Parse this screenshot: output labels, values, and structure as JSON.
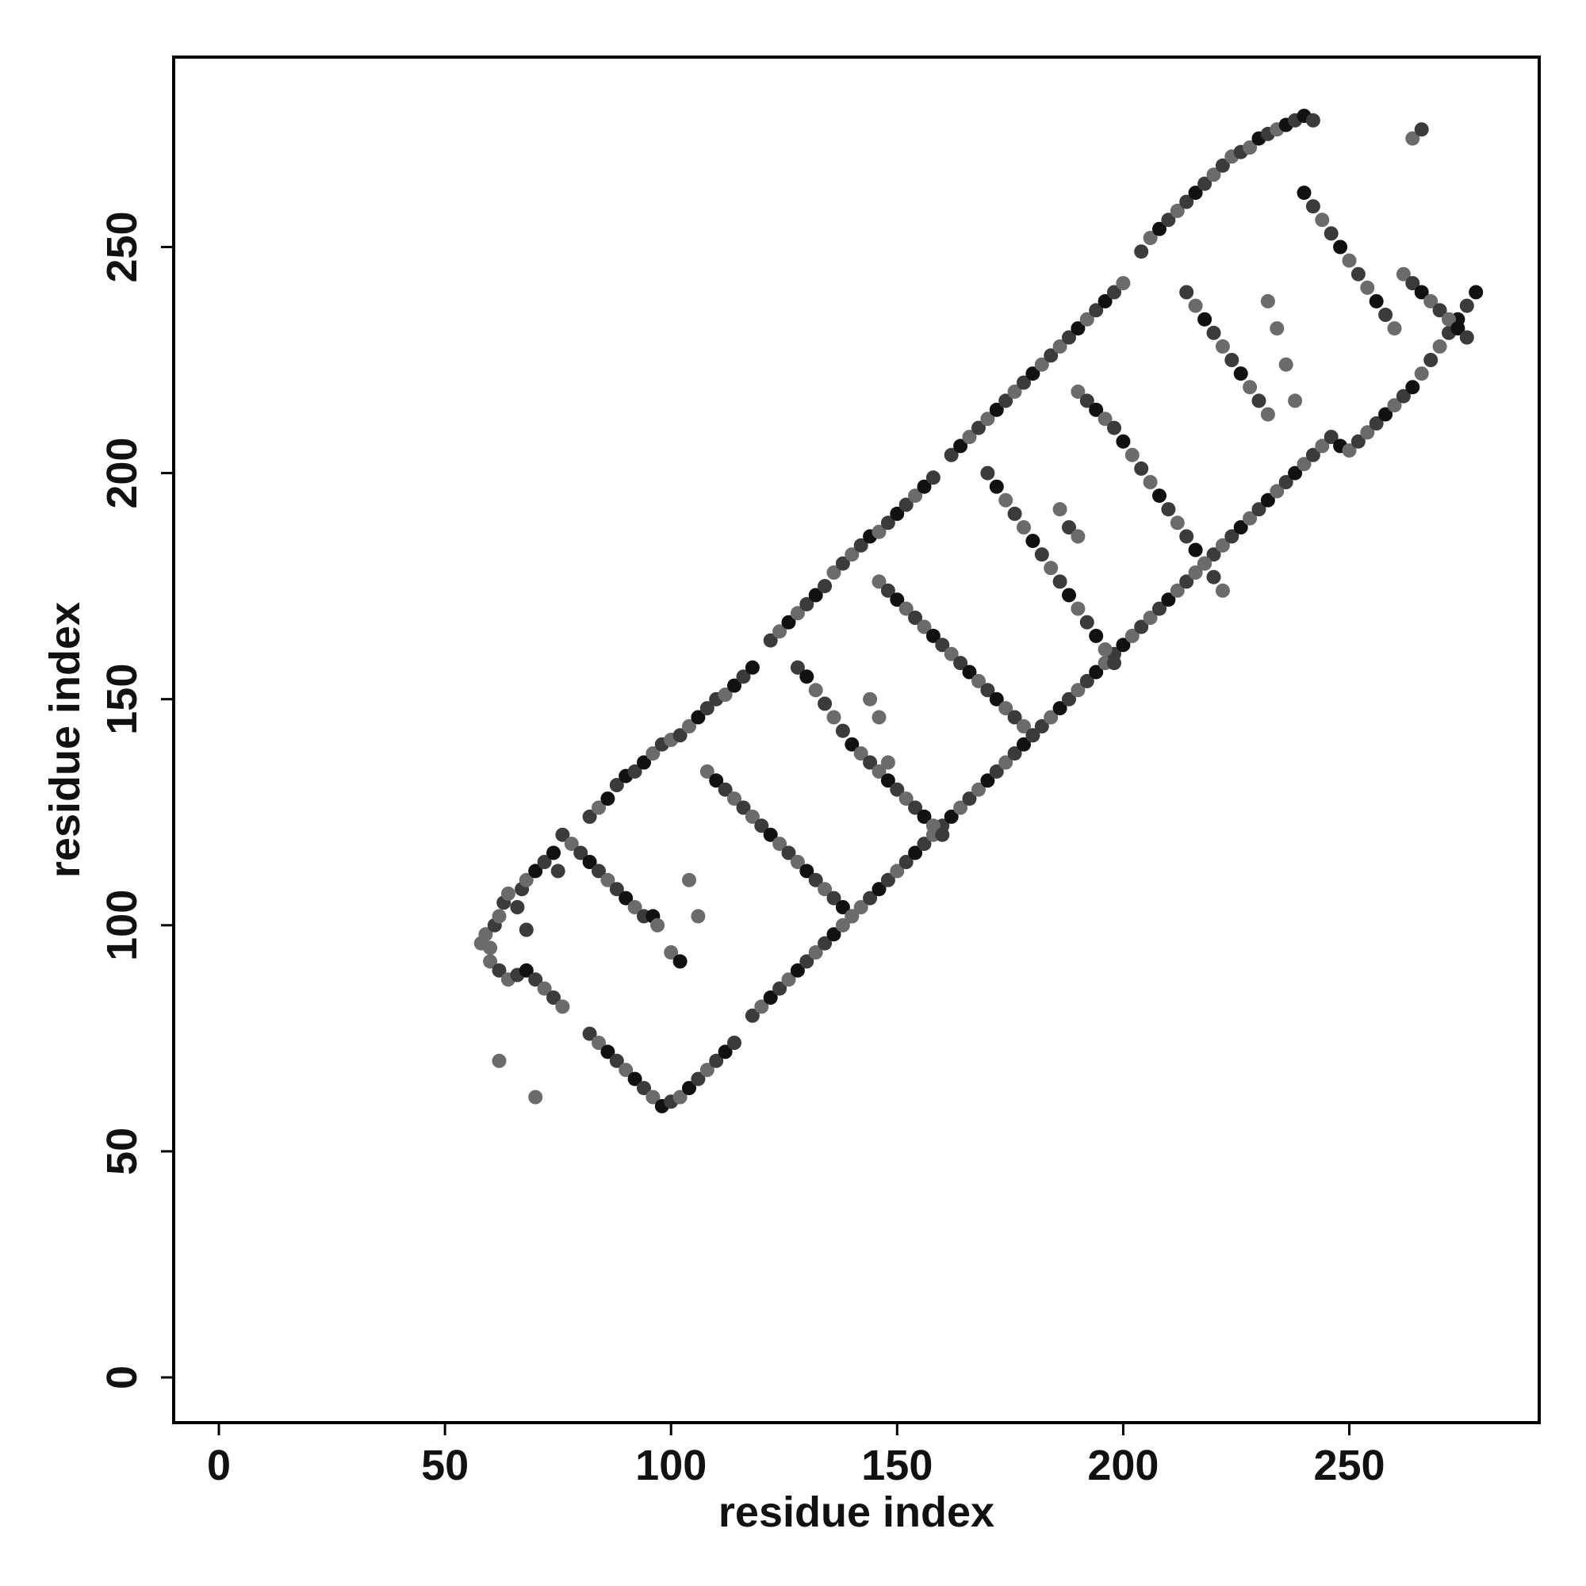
{
  "chart_data": {
    "type": "scatter",
    "title": "",
    "xlabel": "residue index",
    "ylabel": "residue index",
    "xlim": [
      -10,
      292
    ],
    "ylim": [
      -10,
      292
    ],
    "xticks": [
      "0",
      "50",
      "100",
      "150",
      "200",
      "250"
    ],
    "yticks": [
      "0",
      "50",
      "100",
      "150",
      "200",
      "250"
    ],
    "grid": false,
    "legend": "none",
    "colors": [
      "#111111",
      "#3b3b3b",
      "#6b6b6b"
    ],
    "points": [
      [
        58,
        96,
        2
      ],
      [
        59,
        98,
        2
      ],
      [
        60,
        95,
        2
      ],
      [
        61,
        100,
        1
      ],
      [
        62,
        102,
        2
      ],
      [
        63,
        105,
        1
      ],
      [
        64,
        107,
        2
      ],
      [
        66,
        104,
        1
      ],
      [
        67,
        108,
        1
      ],
      [
        68,
        110,
        2
      ],
      [
        70,
        112,
        0
      ],
      [
        72,
        114,
        1
      ],
      [
        74,
        116,
        0
      ],
      [
        75,
        112,
        1
      ],
      [
        68,
        99,
        1
      ],
      [
        82,
        124,
        1
      ],
      [
        84,
        126,
        2
      ],
      [
        86,
        128,
        0
      ],
      [
        88,
        131,
        1
      ],
      [
        90,
        133,
        0
      ],
      [
        92,
        134,
        1
      ],
      [
        94,
        136,
        0
      ],
      [
        96,
        138,
        2
      ],
      [
        98,
        140,
        1
      ],
      [
        100,
        141,
        2
      ],
      [
        102,
        142,
        1
      ],
      [
        104,
        144,
        2
      ],
      [
        106,
        146,
        0
      ],
      [
        108,
        148,
        1
      ],
      [
        110,
        150,
        1
      ],
      [
        112,
        151,
        2
      ],
      [
        114,
        153,
        0
      ],
      [
        116,
        155,
        1
      ],
      [
        118,
        157,
        0
      ],
      [
        122,
        163,
        1
      ],
      [
        124,
        165,
        2
      ],
      [
        126,
        167,
        0
      ],
      [
        128,
        169,
        2
      ],
      [
        130,
        171,
        1
      ],
      [
        132,
        173,
        0
      ],
      [
        134,
        175,
        1
      ],
      [
        136,
        178,
        2
      ],
      [
        138,
        180,
        1
      ],
      [
        140,
        182,
        2
      ],
      [
        142,
        184,
        1
      ],
      [
        144,
        186,
        0
      ],
      [
        146,
        187,
        2
      ],
      [
        148,
        189,
        1
      ],
      [
        150,
        191,
        0
      ],
      [
        152,
        193,
        1
      ],
      [
        154,
        195,
        2
      ],
      [
        156,
        197,
        0
      ],
      [
        158,
        199,
        1
      ],
      [
        162,
        204,
        1
      ],
      [
        164,
        206,
        0
      ],
      [
        166,
        208,
        2
      ],
      [
        168,
        210,
        1
      ],
      [
        170,
        212,
        2
      ],
      [
        172,
        214,
        0
      ],
      [
        174,
        216,
        1
      ],
      [
        176,
        218,
        2
      ],
      [
        178,
        220,
        1
      ],
      [
        180,
        222,
        0
      ],
      [
        182,
        224,
        2
      ],
      [
        184,
        226,
        1
      ],
      [
        186,
        228,
        2
      ],
      [
        188,
        230,
        1
      ],
      [
        190,
        232,
        0
      ],
      [
        192,
        234,
        2
      ],
      [
        194,
        236,
        1
      ],
      [
        196,
        238,
        0
      ],
      [
        198,
        240,
        1
      ],
      [
        200,
        242,
        2
      ],
      [
        204,
        249,
        1
      ],
      [
        206,
        252,
        2
      ],
      [
        208,
        254,
        0
      ],
      [
        210,
        256,
        1
      ],
      [
        212,
        258,
        2
      ],
      [
        214,
        260,
        1
      ],
      [
        216,
        262,
        0
      ],
      [
        218,
        264,
        1
      ],
      [
        220,
        266,
        2
      ],
      [
        222,
        268,
        1
      ],
      [
        224,
        270,
        2
      ],
      [
        226,
        271,
        1
      ],
      [
        228,
        272,
        2
      ],
      [
        230,
        274,
        0
      ],
      [
        232,
        275,
        1
      ],
      [
        234,
        276,
        2
      ],
      [
        236,
        277,
        0
      ],
      [
        238,
        278,
        1
      ],
      [
        240,
        279,
        0
      ],
      [
        242,
        278,
        1
      ],
      [
        60,
        92,
        2
      ],
      [
        62,
        90,
        1
      ],
      [
        64,
        88,
        2
      ],
      [
        66,
        89,
        1
      ],
      [
        68,
        90,
        0
      ],
      [
        70,
        88,
        1
      ],
      [
        72,
        86,
        2
      ],
      [
        74,
        84,
        1
      ],
      [
        76,
        82,
        2
      ],
      [
        82,
        76,
        1
      ],
      [
        84,
        74,
        2
      ],
      [
        86,
        72,
        0
      ],
      [
        88,
        70,
        1
      ],
      [
        90,
        68,
        2
      ],
      [
        92,
        66,
        0
      ],
      [
        94,
        64,
        1
      ],
      [
        96,
        62,
        2
      ],
      [
        98,
        60,
        0
      ],
      [
        100,
        61,
        1
      ],
      [
        102,
        62,
        2
      ],
      [
        104,
        64,
        0
      ],
      [
        106,
        66,
        1
      ],
      [
        108,
        68,
        2
      ],
      [
        110,
        70,
        1
      ],
      [
        112,
        72,
        0
      ],
      [
        114,
        74,
        1
      ],
      [
        118,
        80,
        1
      ],
      [
        120,
        82,
        2
      ],
      [
        122,
        84,
        0
      ],
      [
        124,
        86,
        1
      ],
      [
        126,
        88,
        2
      ],
      [
        128,
        90,
        0
      ],
      [
        130,
        92,
        1
      ],
      [
        132,
        94,
        2
      ],
      [
        134,
        96,
        1
      ],
      [
        136,
        98,
        0
      ],
      [
        138,
        100,
        2
      ],
      [
        140,
        102,
        1
      ],
      [
        142,
        104,
        2
      ],
      [
        144,
        106,
        1
      ],
      [
        146,
        108,
        0
      ],
      [
        148,
        110,
        1
      ],
      [
        150,
        112,
        2
      ],
      [
        152,
        114,
        1
      ],
      [
        154,
        116,
        0
      ],
      [
        156,
        118,
        1
      ],
      [
        158,
        120,
        2
      ],
      [
        160,
        122,
        1
      ],
      [
        162,
        124,
        0
      ],
      [
        164,
        126,
        2
      ],
      [
        166,
        128,
        1
      ],
      [
        168,
        130,
        2
      ],
      [
        170,
        132,
        0
      ],
      [
        172,
        134,
        1
      ],
      [
        174,
        136,
        2
      ],
      [
        176,
        138,
        1
      ],
      [
        178,
        140,
        0
      ],
      [
        180,
        142,
        2
      ],
      [
        182,
        144,
        1
      ],
      [
        184,
        146,
        2
      ],
      [
        186,
        148,
        0
      ],
      [
        188,
        150,
        1
      ],
      [
        190,
        152,
        2
      ],
      [
        192,
        154,
        1
      ],
      [
        194,
        156,
        0
      ],
      [
        196,
        158,
        2
      ],
      [
        198,
        160,
        1
      ],
      [
        200,
        162,
        0
      ],
      [
        202,
        164,
        2
      ],
      [
        204,
        166,
        1
      ],
      [
        206,
        168,
        2
      ],
      [
        208,
        170,
        1
      ],
      [
        210,
        172,
        0
      ],
      [
        212,
        174,
        2
      ],
      [
        214,
        176,
        1
      ],
      [
        216,
        178,
        2
      ],
      [
        218,
        180,
        0
      ],
      [
        220,
        182,
        1
      ],
      [
        222,
        184,
        2
      ],
      [
        224,
        186,
        1
      ],
      [
        226,
        188,
        0
      ],
      [
        228,
        190,
        2
      ],
      [
        230,
        192,
        1
      ],
      [
        232,
        194,
        0
      ],
      [
        234,
        196,
        2
      ],
      [
        236,
        198,
        1
      ],
      [
        238,
        200,
        0
      ],
      [
        240,
        202,
        2
      ],
      [
        242,
        204,
        1
      ],
      [
        244,
        206,
        2
      ],
      [
        246,
        208,
        1
      ],
      [
        248,
        206,
        0
      ],
      [
        250,
        205,
        2
      ],
      [
        252,
        207,
        1
      ],
      [
        254,
        209,
        2
      ],
      [
        256,
        211,
        1
      ],
      [
        258,
        213,
        0
      ],
      [
        260,
        215,
        2
      ],
      [
        262,
        217,
        1
      ],
      [
        264,
        219,
        0
      ],
      [
        266,
        222,
        2
      ],
      [
        268,
        225,
        1
      ],
      [
        270,
        228,
        2
      ],
      [
        272,
        231,
        1
      ],
      [
        274,
        234,
        0
      ],
      [
        276,
        237,
        1
      ],
      [
        278,
        240,
        0
      ],
      [
        76,
        120,
        1
      ],
      [
        78,
        118,
        2
      ],
      [
        80,
        116,
        1
      ],
      [
        82,
        114,
        0
      ],
      [
        84,
        112,
        1
      ],
      [
        86,
        110,
        2
      ],
      [
        88,
        108,
        1
      ],
      [
        90,
        106,
        0
      ],
      [
        92,
        104,
        2
      ],
      [
        94,
        102,
        1
      ],
      [
        108,
        134,
        2
      ],
      [
        110,
        132,
        0
      ],
      [
        112,
        130,
        1
      ],
      [
        114,
        128,
        2
      ],
      [
        116,
        126,
        1
      ],
      [
        118,
        124,
        2
      ],
      [
        120,
        122,
        1
      ],
      [
        122,
        120,
        0
      ],
      [
        124,
        118,
        2
      ],
      [
        126,
        116,
        1
      ],
      [
        128,
        114,
        2
      ],
      [
        130,
        112,
        0
      ],
      [
        132,
        110,
        1
      ],
      [
        134,
        108,
        2
      ],
      [
        136,
        106,
        1
      ],
      [
        138,
        104,
        0
      ],
      [
        140,
        102,
        2
      ],
      [
        128,
        157,
        1
      ],
      [
        130,
        155,
        0
      ],
      [
        132,
        152,
        2
      ],
      [
        134,
        149,
        1
      ],
      [
        136,
        146,
        2
      ],
      [
        138,
        143,
        1
      ],
      [
        140,
        140,
        0
      ],
      [
        142,
        138,
        2
      ],
      [
        144,
        136,
        1
      ],
      [
        146,
        134,
        2
      ],
      [
        148,
        132,
        0
      ],
      [
        150,
        130,
        1
      ],
      [
        152,
        128,
        2
      ],
      [
        154,
        126,
        1
      ],
      [
        156,
        124,
        0
      ],
      [
        158,
        122,
        2
      ],
      [
        160,
        120,
        1
      ],
      [
        146,
        176,
        2
      ],
      [
        148,
        174,
        1
      ],
      [
        150,
        172,
        0
      ],
      [
        152,
        170,
        2
      ],
      [
        154,
        168,
        1
      ],
      [
        156,
        166,
        2
      ],
      [
        158,
        164,
        0
      ],
      [
        160,
        162,
        1
      ],
      [
        162,
        160,
        2
      ],
      [
        164,
        158,
        1
      ],
      [
        166,
        156,
        0
      ],
      [
        168,
        154,
        2
      ],
      [
        170,
        152,
        1
      ],
      [
        172,
        150,
        0
      ],
      [
        174,
        148,
        2
      ],
      [
        176,
        146,
        1
      ],
      [
        178,
        144,
        2
      ],
      [
        180,
        142,
        1
      ],
      [
        170,
        200,
        1
      ],
      [
        172,
        197,
        0
      ],
      [
        174,
        194,
        2
      ],
      [
        176,
        191,
        1
      ],
      [
        178,
        188,
        2
      ],
      [
        180,
        185,
        0
      ],
      [
        182,
        182,
        1
      ],
      [
        184,
        179,
        2
      ],
      [
        186,
        176,
        1
      ],
      [
        188,
        173,
        0
      ],
      [
        190,
        170,
        2
      ],
      [
        192,
        167,
        1
      ],
      [
        194,
        164,
        0
      ],
      [
        196,
        161,
        2
      ],
      [
        198,
        158,
        1
      ],
      [
        190,
        218,
        2
      ],
      [
        192,
        216,
        1
      ],
      [
        194,
        214,
        0
      ],
      [
        196,
        212,
        2
      ],
      [
        198,
        210,
        1
      ],
      [
        200,
        207,
        0
      ],
      [
        202,
        204,
        2
      ],
      [
        204,
        201,
        1
      ],
      [
        206,
        198,
        2
      ],
      [
        208,
        195,
        0
      ],
      [
        210,
        192,
        1
      ],
      [
        212,
        189,
        2
      ],
      [
        214,
        186,
        1
      ],
      [
        216,
        183,
        0
      ],
      [
        218,
        180,
        2
      ],
      [
        220,
        177,
        1
      ],
      [
        222,
        174,
        2
      ],
      [
        214,
        240,
        1
      ],
      [
        216,
        237,
        2
      ],
      [
        218,
        234,
        0
      ],
      [
        220,
        231,
        1
      ],
      [
        222,
        228,
        2
      ],
      [
        224,
        225,
        1
      ],
      [
        226,
        222,
        0
      ],
      [
        228,
        219,
        2
      ],
      [
        230,
        216,
        1
      ],
      [
        232,
        213,
        2
      ],
      [
        240,
        262,
        0
      ],
      [
        242,
        259,
        1
      ],
      [
        244,
        256,
        2
      ],
      [
        246,
        253,
        1
      ],
      [
        248,
        250,
        0
      ],
      [
        250,
        247,
        2
      ],
      [
        252,
        244,
        1
      ],
      [
        254,
        241,
        2
      ],
      [
        256,
        238,
        0
      ],
      [
        258,
        235,
        1
      ],
      [
        260,
        232,
        2
      ],
      [
        264,
        274,
        2
      ],
      [
        266,
        276,
        1
      ],
      [
        262,
        244,
        2
      ],
      [
        264,
        242,
        1
      ],
      [
        266,
        240,
        0
      ],
      [
        268,
        238,
        2
      ],
      [
        270,
        236,
        1
      ],
      [
        272,
        234,
        2
      ],
      [
        274,
        232,
        0
      ],
      [
        276,
        230,
        1
      ],
      [
        62,
        70,
        2
      ],
      [
        70,
        62,
        2
      ],
      [
        96,
        102,
        0
      ],
      [
        97,
        100,
        2
      ],
      [
        100,
        94,
        2
      ],
      [
        102,
        92,
        0
      ],
      [
        104,
        110,
        2
      ],
      [
        106,
        102,
        2
      ],
      [
        144,
        150,
        2
      ],
      [
        146,
        146,
        2
      ],
      [
        148,
        136,
        2
      ],
      [
        186,
        192,
        2
      ],
      [
        188,
        188,
        1
      ],
      [
        190,
        186,
        2
      ],
      [
        232,
        238,
        2
      ],
      [
        234,
        232,
        2
      ],
      [
        236,
        224,
        2
      ],
      [
        238,
        216,
        2
      ]
    ]
  }
}
